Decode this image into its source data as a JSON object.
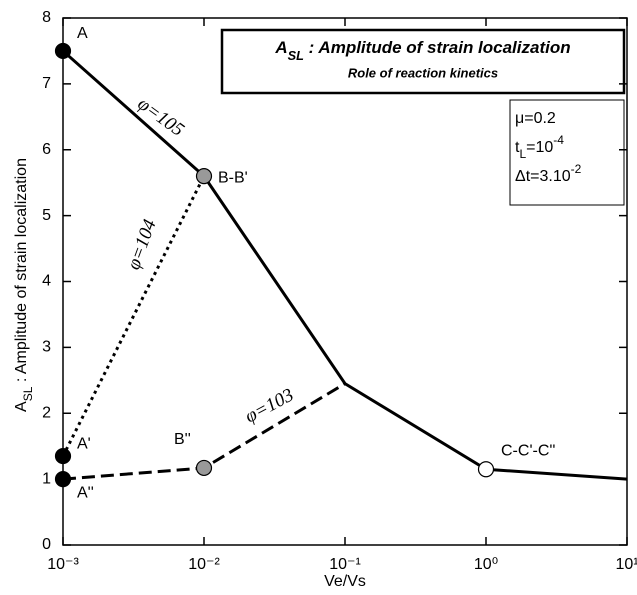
{
  "chart_data": {
    "type": "line",
    "title": [
      {
        "t": "A"
      },
      {
        "sub": "SL"
      },
      {
        "t": " : Amplitude of strain localization"
      }
    ],
    "subtitle": "Role of reaction kinetics",
    "parameters": [
      [
        {
          "t": "μ=0.2"
        }
      ],
      [
        {
          "t": "t"
        },
        {
          "sub": "L"
        },
        {
          "t": "=10"
        },
        {
          "sup": "-4"
        }
      ],
      [
        {
          "t": "Δt=3.10"
        },
        {
          "sup": "-2"
        }
      ]
    ],
    "x_label": "Ve/Vs",
    "y_label": [
      {
        "t": "A"
      },
      {
        "sub": "SL"
      },
      {
        "t": " : Amplitude of strain localization"
      }
    ],
    "x_scale": "log",
    "xlim": [
      0.001,
      10
    ],
    "ylim": [
      0,
      8
    ],
    "xticks": [
      {
        "value": 0.001,
        "label": "10⁻³"
      },
      {
        "value": 0.01,
        "label": "10⁻²"
      },
      {
        "value": 0.1,
        "label": "10⁻¹"
      },
      {
        "value": 1,
        "label": "10⁰"
      },
      {
        "value": 10,
        "label": "10¹"
      }
    ],
    "yticks": [
      0,
      1,
      2,
      3,
      4,
      5,
      6,
      7,
      8
    ],
    "series": [
      {
        "name": "φ=105",
        "color": "#000000",
        "style": "solid",
        "x": [
          0.001,
          0.01,
          0.1,
          1,
          10
        ],
        "values": [
          7.5,
          5.6,
          2.45,
          1.15,
          1.0
        ]
      },
      {
        "name": "φ=104",
        "color": "#000000",
        "style": "dotted",
        "x": [
          0.001,
          0.01
        ],
        "values": [
          1.35,
          5.6
        ]
      },
      {
        "name": "φ=103",
        "color": "#000000",
        "style": "dashed",
        "x": [
          0.001,
          0.01,
          0.1
        ],
        "values": [
          1.0,
          1.17,
          2.45
        ]
      }
    ],
    "points": [
      {
        "label": "A",
        "x": 0.001,
        "y": 7.5,
        "fill": "#000000"
      },
      {
        "label": "A'",
        "x": 0.001,
        "y": 1.35,
        "fill": "#000000"
      },
      {
        "label": "A''",
        "x": 0.001,
        "y": 1.0,
        "fill": "#000000"
      },
      {
        "label": "B-B'",
        "x": 0.01,
        "y": 5.6,
        "fill": "#999999"
      },
      {
        "label": "B''",
        "x": 0.01,
        "y": 1.17,
        "fill": "#999999"
      },
      {
        "label": "C-C'-C''",
        "x": 1,
        "y": 1.15,
        "fill": "#ffffff"
      }
    ]
  }
}
